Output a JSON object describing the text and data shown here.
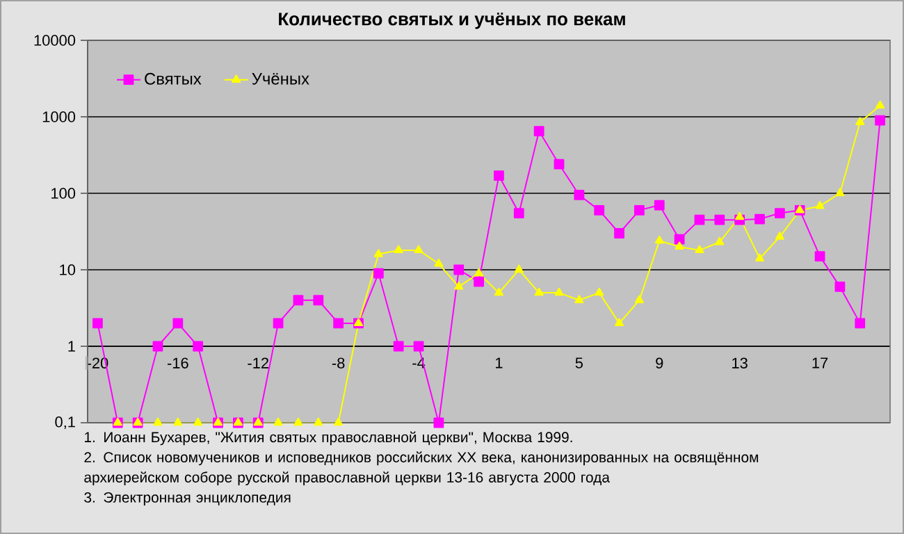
{
  "chart_data": {
    "type": "line",
    "title": "Количество святых и учёных по векам",
    "categories": [
      "-20",
      null,
      null,
      null,
      "-16",
      null,
      null,
      null,
      "-12",
      null,
      null,
      null,
      "-8",
      null,
      null,
      null,
      "-4",
      null,
      null,
      null,
      "1",
      null,
      null,
      null,
      "5",
      null,
      null,
      null,
      "9",
      null,
      null,
      null,
      "13",
      null,
      null,
      null,
      "17",
      null,
      null,
      null
    ],
    "series": [
      {
        "name": "Святых",
        "color": "#ff00ff",
        "marker": "square",
        "values": [
          2,
          0.1,
          0.1,
          1,
          2,
          1,
          0.1,
          0.1,
          0.1,
          2,
          4,
          4,
          2,
          2,
          9,
          1,
          1,
          0.1,
          10,
          7,
          170,
          55,
          650,
          240,
          95,
          60,
          30,
          60,
          70,
          25,
          45,
          45,
          45,
          46,
          55,
          60,
          15,
          6,
          2,
          900
        ]
      },
      {
        "name": "Учёных",
        "color": "#ffff00",
        "marker": "triangle",
        "values": [
          null,
          0.1,
          0.1,
          0.1,
          0.1,
          0.1,
          0.1,
          0.1,
          0.1,
          0.1,
          0.1,
          0.1,
          0.1,
          2,
          16,
          18,
          18,
          12,
          6,
          9,
          5,
          10,
          5,
          5,
          4,
          5,
          2,
          4,
          24,
          20,
          18,
          23,
          49,
          14,
          27,
          60,
          68,
          100,
          850,
          1400
        ]
      }
    ],
    "log": "y",
    "ylim": [
      0.1,
      10000
    ],
    "yticks": [
      {
        "value": 0.1,
        "label": "0,1"
      },
      1,
      10,
      100,
      1000,
      10000
    ],
    "grid": "y",
    "legend": "top left",
    "annotations": [
      "1. Иоанн Бухарев, \"Жития святых православной церкви\", Москва 1999.",
      "2. Список новомучеников и исповедников российских XX века, канонизированных на освящённом архиерейском соборе русской православной церкви 13-16 августа 2000  года",
      "3. Электронная энциклопедия"
    ]
  }
}
